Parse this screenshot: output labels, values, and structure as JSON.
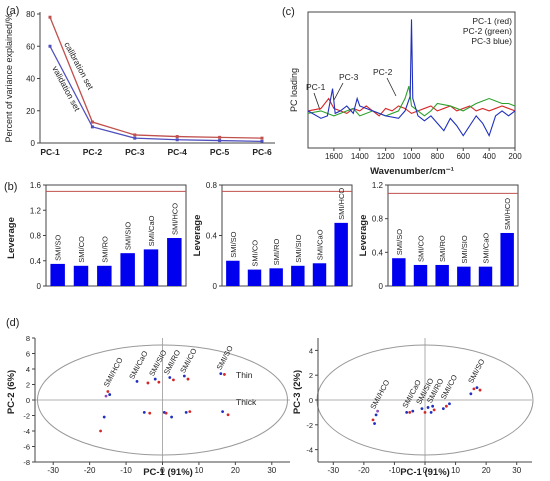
{
  "chart_data": [
    {
      "panel": "(a)",
      "type": "line",
      "ylabel": "Percent of variance explained/%",
      "categories": [
        "PC-1",
        "PC-2",
        "PC-3",
        "PC-4",
        "PC-5",
        "PC-6"
      ],
      "ylim": [
        0,
        80
      ],
      "yticks": [
        "0",
        "20",
        "40",
        "60",
        "80"
      ],
      "series": [
        {
          "name": "calibration set",
          "color": "#c0504d",
          "values": [
            78,
            13,
            5,
            4,
            3.5,
            3
          ]
        },
        {
          "name": "validation set",
          "color": "#4f4fbf",
          "values": [
            60,
            10,
            3,
            2,
            1.5,
            1
          ]
        }
      ],
      "curve_labels": [
        "calibration set",
        "validation set"
      ]
    },
    {
      "panel": "(c)",
      "type": "line",
      "ylabel": "PC loading",
      "xlabel": "Wavenumber/cm⁻¹",
      "xlim": [
        1800,
        200
      ],
      "xticks": [
        1600,
        1400,
        1200,
        1000,
        800,
        600,
        400,
        200
      ],
      "legend": [
        "PC-1 (red)",
        "PC-2 (green)",
        "PC-3 blue)"
      ],
      "annotations": [
        "PC-1",
        "PC-3",
        "PC-2"
      ],
      "series": [
        {
          "color": "#d62728",
          "x": [
            1800,
            1700,
            1640,
            1600,
            1550,
            1500,
            1450,
            1400,
            1350,
            1300,
            1250,
            1200,
            1150,
            1100,
            1050,
            1000,
            950,
            900,
            850,
            800,
            750,
            700,
            650,
            600,
            550,
            500,
            450,
            400,
            350,
            300,
            250,
            200
          ],
          "values": [
            0.0,
            0.01,
            0.05,
            0.01,
            0.0,
            -0.01,
            0.01,
            0.0,
            0.02,
            0.0,
            -0.02,
            0.01,
            0.0,
            0.02,
            0.01,
            -0.01,
            0.0,
            0.01,
            0.02,
            0.0,
            0.01,
            0.02,
            0.0,
            0.01,
            0.02,
            0.0,
            0.01,
            0.0,
            0.01,
            0.02,
            0.01,
            0.0
          ]
        },
        {
          "color": "#2ca02c",
          "x": [
            1800,
            1700,
            1600,
            1500,
            1450,
            1400,
            1300,
            1200,
            1100,
            1050,
            1020,
            1000,
            950,
            900,
            850,
            800,
            700,
            600,
            500,
            450,
            400,
            350,
            300,
            250,
            200
          ],
          "values": [
            -0.01,
            0.0,
            -0.02,
            0.0,
            0.01,
            -0.02,
            0.0,
            -0.02,
            0.0,
            0.05,
            0.1,
            0.02,
            0.0,
            -0.02,
            0.0,
            0.03,
            0.02,
            0.0,
            0.03,
            0.04,
            0.05,
            0.04,
            0.03,
            0.03,
            0.02
          ]
        },
        {
          "color": "#1f2fbf",
          "x": [
            1800,
            1700,
            1650,
            1610,
            1590,
            1550,
            1500,
            1450,
            1420,
            1400,
            1300,
            1200,
            1100,
            1050,
            1010,
            1000,
            990,
            950,
            900,
            850,
            800,
            750,
            700,
            650,
            600,
            550,
            500,
            450,
            400,
            350,
            300,
            250,
            200
          ],
          "values": [
            0.0,
            -0.03,
            -0.02,
            0.09,
            -0.01,
            0.0,
            0.02,
            -0.01,
            0.05,
            0.02,
            0.0,
            -0.02,
            -0.03,
            0.0,
            0.06,
            0.37,
            0.05,
            -0.02,
            -0.04,
            -0.02,
            -0.05,
            -0.08,
            -0.03,
            -0.06,
            -0.1,
            -0.06,
            -0.02,
            -0.05,
            -0.1,
            -0.02,
            0.0,
            -0.02,
            0.0
          ]
        }
      ]
    },
    {
      "panel": "(b)",
      "type": "bar",
      "subplots": [
        {
          "ylabel": "Leverage",
          "ylim": [
            0,
            1.6
          ],
          "yticks": [
            "0",
            "0.4",
            "0.8",
            "1.2",
            "1.6"
          ],
          "threshold": 1.5,
          "categories": [
            "SMI/SO",
            "SMI/CO",
            "SMI/RO",
            "SMI/SIO",
            "SMI/CaO",
            "SMI/HCO"
          ],
          "values": [
            0.35,
            0.32,
            0.32,
            0.52,
            0.58,
            0.76
          ]
        },
        {
          "ylabel": "Leverage",
          "ylim": [
            0,
            0.8
          ],
          "yticks": [
            "0",
            "0.4",
            "0.8"
          ],
          "threshold": 0.75,
          "categories": [
            "SMI/SO",
            "SMI/CO",
            "SMI/RO",
            "SMI/SIO",
            "SMI/CaO",
            "SMI/HCO"
          ],
          "values": [
            0.2,
            0.13,
            0.14,
            0.16,
            0.18,
            0.5
          ]
        },
        {
          "ylabel": "Leverage",
          "ylim": [
            0,
            1.2
          ],
          "yticks": [
            "0",
            "0.4",
            "0.8",
            "1.2"
          ],
          "threshold": 1.1,
          "categories": [
            "SMI/SO",
            "SMI/CO",
            "SMI/RO",
            "SMI/SIO",
            "SMI/CaO",
            "SMI/HCO"
          ],
          "values": [
            0.33,
            0.25,
            0.25,
            0.23,
            0.23,
            0.63
          ]
        }
      ]
    },
    {
      "panel": "(d)",
      "type": "scatter",
      "subplots": [
        {
          "xlabel": "PC-1 (91%)",
          "ylabel": "PC-2 (6%)",
          "xlim": [
            -35,
            35
          ],
          "ylim": [
            -8,
            8
          ],
          "xticks": [
            -30,
            -20,
            -10,
            0,
            10,
            20,
            30
          ],
          "yticks": [
            -8,
            -6,
            -4,
            -2,
            0,
            2,
            4,
            6,
            8
          ],
          "group_labels": [
            "SMI/HCO",
            "SMI/CaO",
            "SMI/SIO",
            "SMI/RO",
            "SMI/CO",
            "SMI/SO"
          ],
          "annotations": [
            "Thin",
            "Thick"
          ],
          "points": [
            {
              "x": -15,
              "y": 1.1,
              "c": "#d62728"
            },
            {
              "x": -14.5,
              "y": 0.7,
              "c": "#1f2fbf"
            },
            {
              "x": -15.5,
              "y": 0.5,
              "c": "#8b4fbf"
            },
            {
              "x": -16,
              "y": -2.2,
              "c": "#1f2fbf"
            },
            {
              "x": -17,
              "y": -4,
              "c": "#d62728"
            },
            {
              "x": -7,
              "y": 2.4,
              "c": "#1f2fbf"
            },
            {
              "x": -4,
              "y": 2.2,
              "c": "#d62728"
            },
            {
              "x": -5,
              "y": -1.6,
              "c": "#1f2fbf"
            },
            {
              "x": -3.5,
              "y": -1.7,
              "c": "#d62728"
            },
            {
              "x": -2,
              "y": 2.7,
              "c": "#1f2fbf"
            },
            {
              "x": -1,
              "y": 2.3,
              "c": "#d62728"
            },
            {
              "x": 0.5,
              "y": -1.6,
              "c": "#1f2fbf"
            },
            {
              "x": 1,
              "y": -1.7,
              "c": "#d62728"
            },
            {
              "x": 2,
              "y": 2.9,
              "c": "#1f2fbf"
            },
            {
              "x": 3,
              "y": 2.6,
              "c": "#d62728"
            },
            {
              "x": 2.5,
              "y": -2.2,
              "c": "#1f2fbf"
            },
            {
              "x": 6,
              "y": 3.1,
              "c": "#1f2fbf"
            },
            {
              "x": 7,
              "y": 2.7,
              "c": "#d62728"
            },
            {
              "x": 6.5,
              "y": -1.6,
              "c": "#1f2fbf"
            },
            {
              "x": 7.5,
              "y": -1.5,
              "c": "#d62728"
            },
            {
              "x": 16,
              "y": 3.4,
              "c": "#1f2fbf"
            },
            {
              "x": 17,
              "y": 3.3,
              "c": "#d62728"
            },
            {
              "x": 16.5,
              "y": -1.5,
              "c": "#1f2fbf"
            },
            {
              "x": 18,
              "y": -1.9,
              "c": "#d62728"
            }
          ]
        },
        {
          "xlabel": "PC-1 (91%)",
          "ylabel": "PC-3 (2%)",
          "xlim": [
            -35,
            35
          ],
          "ylim": [
            -5,
            5
          ],
          "xticks": [
            -30,
            -20,
            -10,
            0,
            10,
            20,
            30
          ],
          "yticks": [
            -4,
            -2,
            0,
            2,
            4
          ],
          "group_labels": [
            "SMI/HCO",
            "SMI/CaO",
            "SMI/SIO",
            "SMI/RO",
            "SMI/CO",
            "SMI/SO"
          ],
          "points": [
            {
              "x": -17,
              "y": -1.6,
              "c": "#d62728"
            },
            {
              "x": -16,
              "y": -1.2,
              "c": "#1f2fbf"
            },
            {
              "x": -16.5,
              "y": -1.9,
              "c": "#1f2fbf"
            },
            {
              "x": -15.5,
              "y": -0.9,
              "c": "#8b4fbf"
            },
            {
              "x": -6,
              "y": -1.0,
              "c": "#1f2fbf"
            },
            {
              "x": -5,
              "y": -1.0,
              "c": "#d62728"
            },
            {
              "x": -4,
              "y": -0.9,
              "c": "#1f2fbf"
            },
            {
              "x": -1,
              "y": -0.7,
              "c": "#1f2fbf"
            },
            {
              "x": 0,
              "y": -1.0,
              "c": "#d62728"
            },
            {
              "x": 1,
              "y": -0.6,
              "c": "#1f2fbf"
            },
            {
              "x": 2,
              "y": -1.0,
              "c": "#1f2fbf"
            },
            {
              "x": 3,
              "y": -0.8,
              "c": "#d62728"
            },
            {
              "x": 2.5,
              "y": -0.5,
              "c": "#1f2fbf"
            },
            {
              "x": 6,
              "y": -0.7,
              "c": "#1f2fbf"
            },
            {
              "x": 7,
              "y": -0.5,
              "c": "#d62728"
            },
            {
              "x": 8,
              "y": -0.3,
              "c": "#1f2fbf"
            },
            {
              "x": 15,
              "y": 0.5,
              "c": "#1f2fbf"
            },
            {
              "x": 16,
              "y": 0.9,
              "c": "#d62728"
            },
            {
              "x": 17,
              "y": 1.0,
              "c": "#1f2fbf"
            },
            {
              "x": 18,
              "y": 0.8,
              "c": "#d62728"
            }
          ]
        }
      ]
    }
  ]
}
